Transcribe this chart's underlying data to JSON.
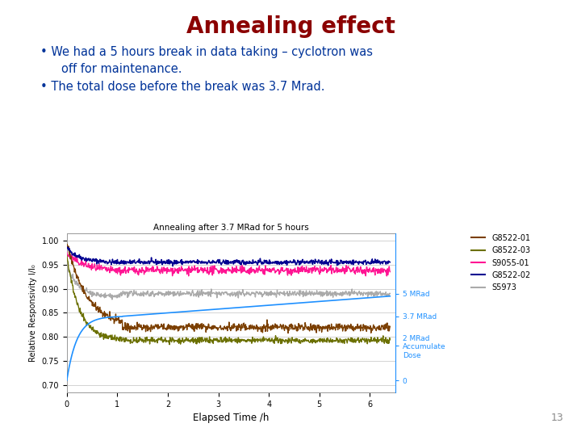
{
  "title": "Annealing effect",
  "title_color": "#8B0000",
  "bullet1_line1": "We had a 5 hours break in data taking – cyclotron was",
  "bullet1_line2": "off for maintenance.",
  "bullet2": "The total dose before the break was 3.7 Mrad.",
  "chart_title": "Annealing after 3.7 MRad for 5 hours",
  "xlabel": "Elapsed Time /h",
  "ylabel": "Relative Responsivity I/I₀",
  "xlim": [
    0,
    6.5
  ],
  "ylim": [
    0.685,
    1.015
  ],
  "yticks": [
    0.7,
    0.75,
    0.8,
    0.85,
    0.9,
    0.95,
    1.0
  ],
  "xticks": [
    0,
    1,
    2,
    3,
    4,
    5,
    6
  ],
  "series": {
    "G8522-01": {
      "color": "#7B3F00"
    },
    "G8522-03": {
      "color": "#6B7000"
    },
    "S9055-01": {
      "color": "#FF1493"
    },
    "G8522-02": {
      "color": "#000090"
    },
    "S5973": {
      "color": "#AAAAAA"
    }
  },
  "right_axis_color": "#1E90FF",
  "page_number": "13",
  "background_color": "#FFFFFF",
  "text_color": "#003399"
}
